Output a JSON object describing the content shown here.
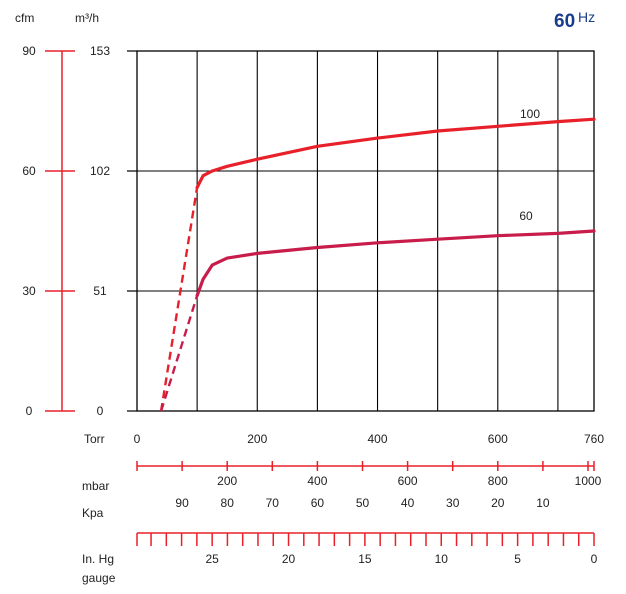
{
  "chart_data": {
    "type": "line",
    "badge": {
      "number": "60",
      "unit": "Hz"
    },
    "x": {
      "label": "Torr",
      "min": 0,
      "max": 760,
      "ticks": [
        0,
        200,
        400,
        600,
        760
      ]
    },
    "y": {
      "left_label": "cfm",
      "right_label": "m³/h",
      "min": 0,
      "max": 153,
      "ticks_m3h": [
        0,
        51,
        102,
        153
      ],
      "ticks_cfm": [
        0,
        30,
        60,
        90
      ]
    },
    "series": [
      {
        "name": "100",
        "color": "#e8202a",
        "dashed_points": [
          [
            40,
            0
          ],
          [
            100,
            95
          ]
        ],
        "points": [
          [
            100,
            95
          ],
          [
            110,
            100
          ],
          [
            125,
            102
          ],
          [
            150,
            104
          ],
          [
            200,
            107
          ],
          [
            300,
            112.5
          ],
          [
            400,
            116
          ],
          [
            500,
            119
          ],
          [
            600,
            121
          ],
          [
            700,
            123
          ],
          [
            760,
            124
          ]
        ]
      },
      {
        "name": "60",
        "color": "#c81d4a",
        "dashed_points": [
          [
            40,
            0
          ],
          [
            100,
            49
          ]
        ],
        "points": [
          [
            100,
            49
          ],
          [
            110,
            56
          ],
          [
            125,
            62
          ],
          [
            150,
            65
          ],
          [
            200,
            67
          ],
          [
            300,
            69.5
          ],
          [
            400,
            71.5
          ],
          [
            500,
            73
          ],
          [
            600,
            74.5
          ],
          [
            700,
            75.5
          ],
          [
            760,
            76.5
          ]
        ]
      }
    ],
    "scales": {
      "mbar": {
        "label": "mbar",
        "ticks": [
          "200",
          "400",
          "600",
          "800",
          "1000"
        ]
      },
      "kpa": {
        "label": "Kpa",
        "ticks": [
          "90",
          "80",
          "70",
          "60",
          "50",
          "40",
          "30",
          "20",
          "10"
        ]
      },
      "inhg": {
        "label": "In. Hg",
        "label2": "gauge",
        "ticks": [
          "25",
          "20",
          "15",
          "10",
          "5",
          "0"
        ]
      }
    }
  }
}
